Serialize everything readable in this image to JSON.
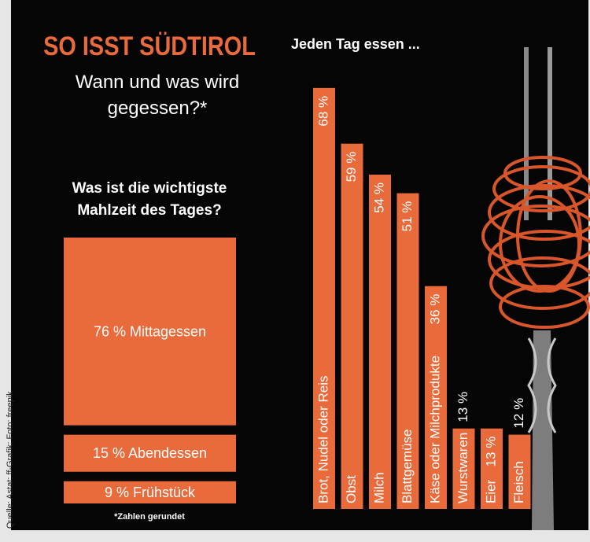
{
  "title": "SO ISST SÜDTIROL",
  "subtitle": "Wann und was wird gegessen?*",
  "note": "*Zahlen gerundet",
  "source": "Quelle: Astat; ff-Grafik; Foto: freepik",
  "chart_data": [
    {
      "type": "box",
      "title": "Was ist die wichtigste Mahlzeit des Tages?",
      "categories": [
        "Mittagessen",
        "Abendessen",
        "Frühstück"
      ],
      "values": [
        76,
        15,
        9
      ],
      "value_labels": [
        "76 %",
        "15 %",
        "9 %"
      ],
      "color": "#e96a3b"
    },
    {
      "type": "bar",
      "title": "Jeden Tag essen ...",
      "categories": [
        "Brot, Nudel oder Reis",
        "Obst",
        "Milch",
        "Blattgemüse",
        "Käse oder Milchprodukte",
        "Wurstwaren",
        "Eier",
        "Fleisch"
      ],
      "values": [
        68,
        59,
        54,
        51,
        36,
        13,
        13,
        12
      ],
      "value_labels": [
        "68 %",
        "59 %",
        "54 %",
        "51 %",
        "36 %",
        "13 %",
        "13 %",
        "12 %"
      ],
      "color": "#e96a3b"
    }
  ]
}
